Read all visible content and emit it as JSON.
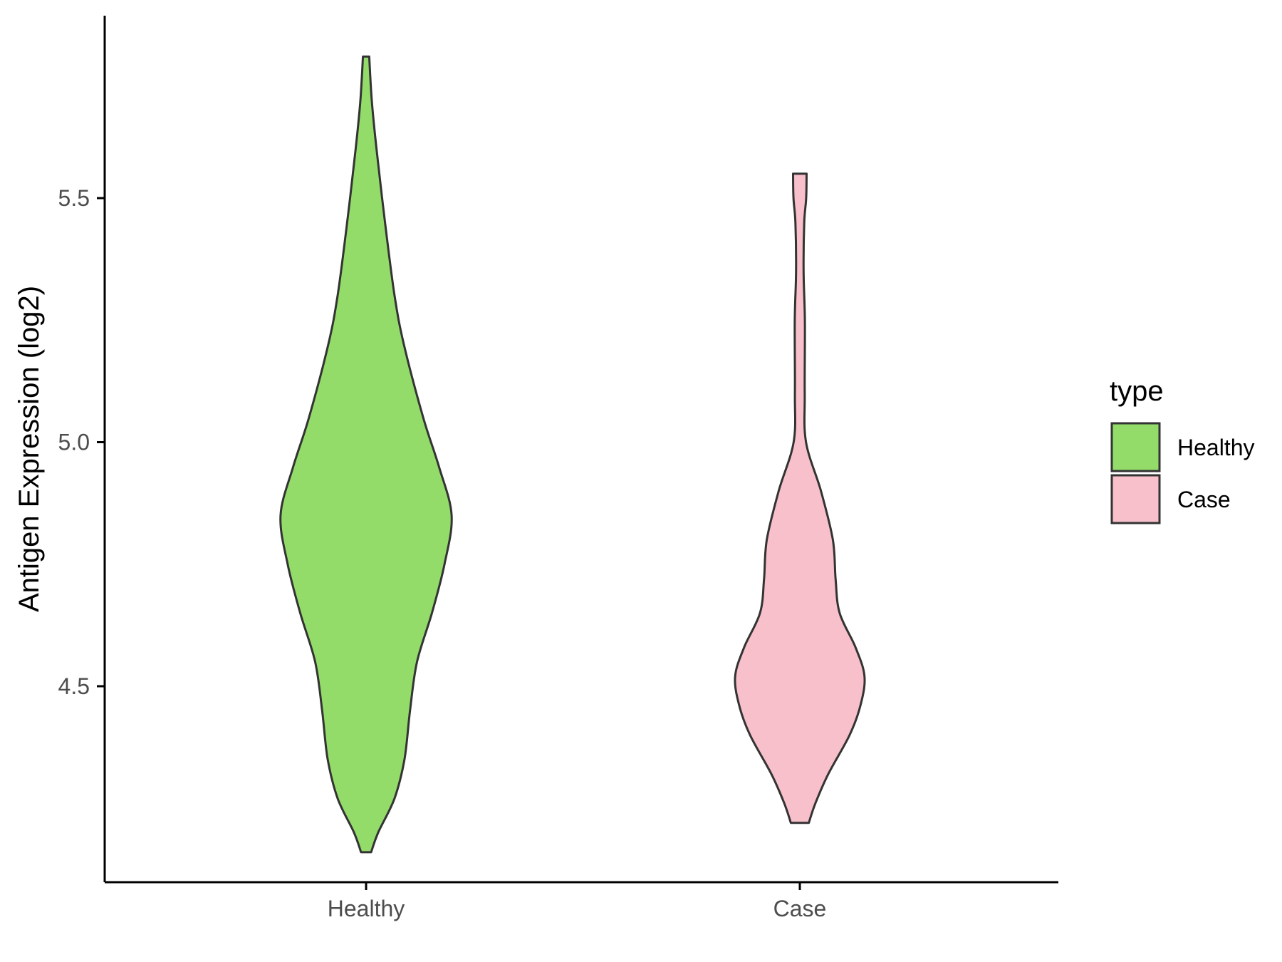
{
  "chart_data": {
    "type": "violin",
    "title": "",
    "xlabel": "",
    "ylabel": "Antigen Expression (log2)",
    "categories": [
      "Healthy",
      "Case"
    ],
    "yticks": [
      4.5,
      5.0,
      5.5
    ],
    "ytick_labels": [
      "4.5",
      "5.0",
      "5.5"
    ],
    "ylim": [
      4.05,
      5.82
    ],
    "grid": false,
    "legend": {
      "title": "type",
      "position": "right",
      "items": [
        {
          "label": "Healthy",
          "color": "#93DC6A"
        },
        {
          "label": "Case",
          "color": "#F8C0CB"
        }
      ]
    },
    "series": [
      {
        "name": "Healthy",
        "color": "#93DC6A",
        "min": 4.16,
        "max": 5.79,
        "density": [
          [
            4.16,
            0.039
          ],
          [
            4.2,
            0.093
          ],
          [
            4.27,
            0.219
          ],
          [
            4.35,
            0.296
          ],
          [
            4.45,
            0.339
          ],
          [
            4.55,
            0.393
          ],
          [
            4.65,
            0.508
          ],
          [
            4.75,
            0.605
          ],
          [
            4.85,
            0.66
          ],
          [
            4.95,
            0.562
          ],
          [
            5.05,
            0.441
          ],
          [
            5.2,
            0.292
          ],
          [
            5.3,
            0.22
          ],
          [
            5.45,
            0.146
          ],
          [
            5.6,
            0.081
          ],
          [
            5.7,
            0.044
          ],
          [
            5.79,
            0.024
          ]
        ]
      },
      {
        "name": "Case",
        "color": "#F8C0CB",
        "min": 4.22,
        "max": 5.55,
        "density": [
          [
            4.22,
            0.069
          ],
          [
            4.26,
            0.12
          ],
          [
            4.32,
            0.219
          ],
          [
            4.4,
            0.384
          ],
          [
            4.46,
            0.467
          ],
          [
            4.52,
            0.499
          ],
          [
            4.58,
            0.429
          ],
          [
            4.65,
            0.307
          ],
          [
            4.72,
            0.276
          ],
          [
            4.8,
            0.255
          ],
          [
            4.9,
            0.163
          ],
          [
            5.0,
            0.048
          ],
          [
            5.1,
            0.038
          ],
          [
            5.25,
            0.039
          ],
          [
            5.35,
            0.029
          ],
          [
            5.45,
            0.034
          ],
          [
            5.5,
            0.049
          ],
          [
            5.55,
            0.052
          ]
        ]
      }
    ]
  }
}
